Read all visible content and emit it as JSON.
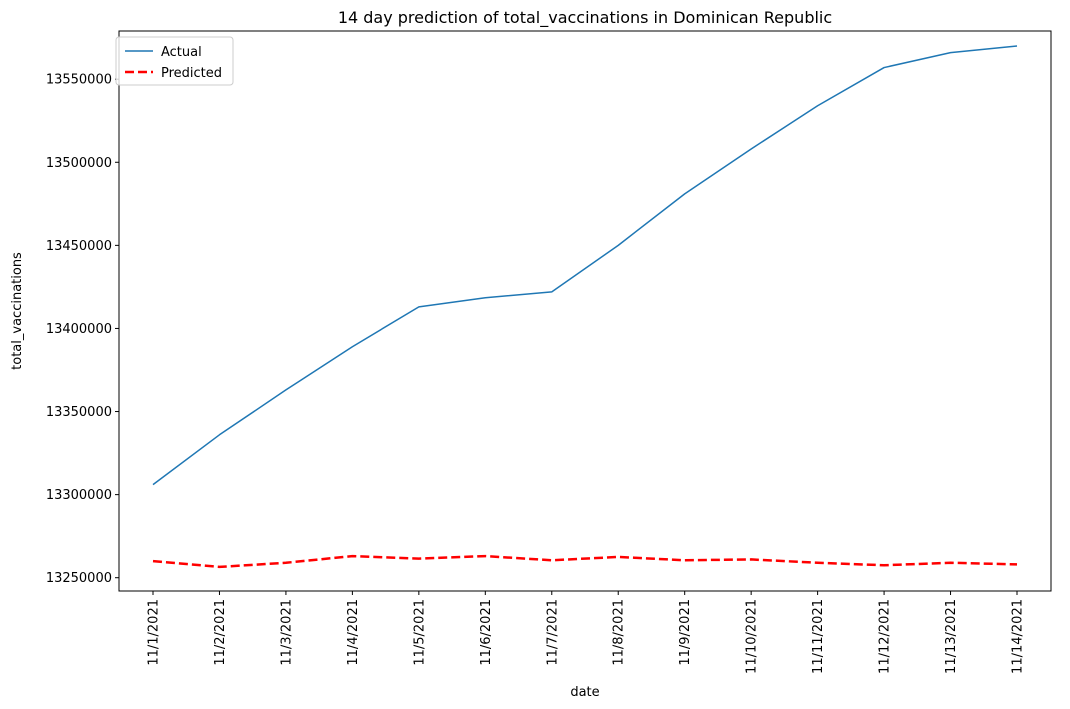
{
  "chart_data": {
    "type": "line",
    "title": "14 day prediction of total_vaccinations in Dominican Republic",
    "xlabel": "date",
    "ylabel": "total_vaccinations",
    "x": [
      "11/1/2021",
      "11/2/2021",
      "11/3/2021",
      "11/4/2021",
      "11/5/2021",
      "11/6/2021",
      "11/7/2021",
      "11/8/2021",
      "11/9/2021",
      "11/10/2021",
      "11/11/2021",
      "11/12/2021",
      "11/13/2021",
      "11/14/2021"
    ],
    "yticks": [
      13250000,
      13300000,
      13350000,
      13400000,
      13450000,
      13500000,
      13550000
    ],
    "ylim": [
      13242000,
      13579000
    ],
    "grid": false,
    "legend_position": "top-left",
    "series": [
      {
        "name": "Actual",
        "color": "#1f77b4",
        "style": "solid",
        "values": [
          13306000,
          13336000,
          13363000,
          13389000,
          13413000,
          13418500,
          13422000,
          13450000,
          13481000,
          13508000,
          13534000,
          13557000,
          13566000,
          13570000
        ]
      },
      {
        "name": "Predicted",
        "color": "#ff0000",
        "style": "dashed",
        "values": [
          13260000,
          13256500,
          13259000,
          13263000,
          13261500,
          13263000,
          13260500,
          13262500,
          13260500,
          13261000,
          13259000,
          13257500,
          13259000,
          13258000
        ]
      }
    ]
  }
}
